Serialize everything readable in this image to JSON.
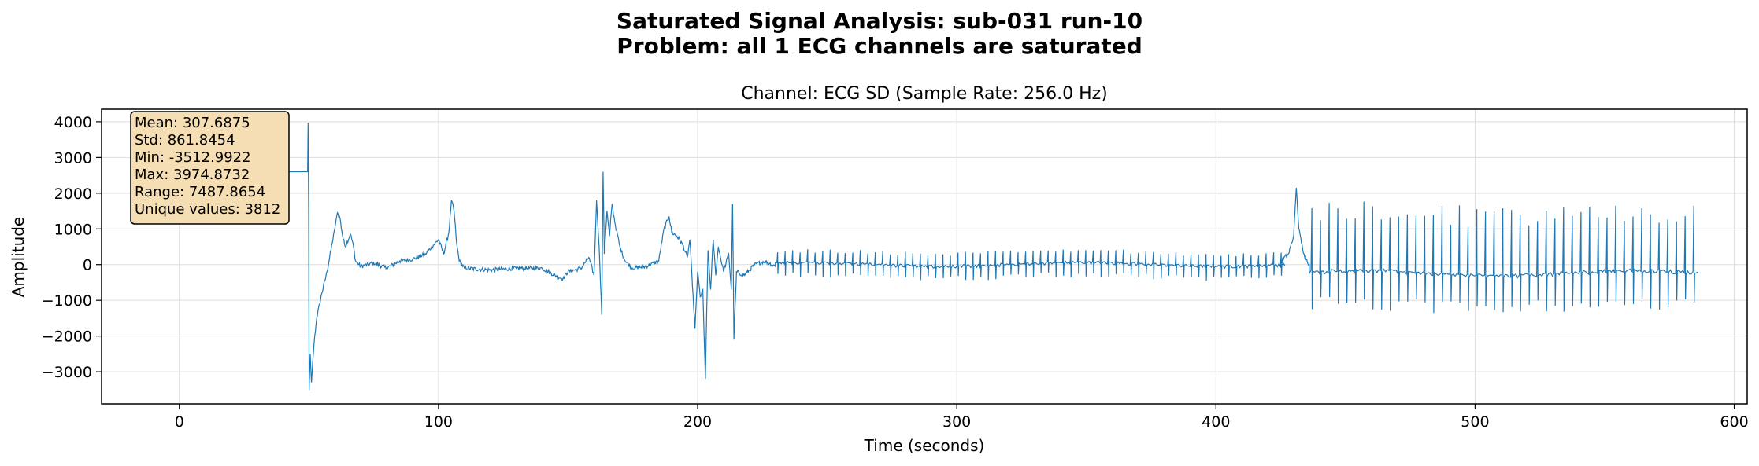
{
  "figure": {
    "suptitle_line_1": "Saturated Signal Analysis: sub-031 run-10",
    "suptitle_line_2": "Problem: all 1 ECG channels are saturated"
  },
  "chart_data": {
    "type": "line",
    "title": "Channel: ECG SD (Sample Rate: 256.0 Hz)",
    "xlabel": "Time (seconds)",
    "ylabel": "Amplitude",
    "xlim": [
      -30,
      605
    ],
    "ylim": [
      -3900,
      4350
    ],
    "x_ticks": [
      0,
      100,
      200,
      300,
      400,
      500,
      600
    ],
    "y_ticks": [
      -3000,
      -2000,
      -1000,
      0,
      1000,
      2000,
      3000,
      4000
    ],
    "grid": true,
    "line_color": "#1f77b4",
    "series": [
      {
        "segments": [
          {
            "type": "flat",
            "x0": -17,
            "x1": 49.5,
            "y": 2600
          },
          {
            "type": "points",
            "pts": [
              [
                49.5,
                2600
              ],
              [
                49.7,
                3974.9
              ],
              [
                49.9,
                1500
              ],
              [
                50.1,
                -3513
              ],
              [
                50.5,
                -2500
              ],
              [
                51,
                -3300
              ],
              [
                52,
                -2200
              ],
              [
                53,
                -1500
              ],
              [
                55,
                -800
              ],
              [
                57,
                -200
              ],
              [
                59,
                600
              ],
              [
                60,
                1000
              ],
              [
                61,
                1450
              ],
              [
                62,
                1300
              ],
              [
                63,
                800
              ],
              [
                64,
                500
              ],
              [
                66,
                850
              ],
              [
                67,
                600
              ],
              [
                68,
                100
              ],
              [
                70,
                -50
              ],
              [
                75,
                50
              ],
              [
                80,
                -100
              ],
              [
                85,
                100
              ],
              [
                90,
                150
              ],
              [
                95,
                300
              ],
              [
                100,
                700
              ],
              [
                102,
                300
              ],
              [
                104,
                900
              ],
              [
                105,
                1800
              ],
              [
                106,
                1500
              ],
              [
                107,
                600
              ],
              [
                108,
                100
              ],
              [
                110,
                -100
              ],
              [
                120,
                -150
              ],
              [
                130,
                -100
              ],
              [
                140,
                -100
              ],
              [
                145,
                -300
              ],
              [
                148,
                -400
              ],
              [
                150,
                -200
              ],
              [
                155,
                -100
              ],
              [
                158,
                200
              ],
              [
                160,
                -300
              ],
              [
                161,
                1800
              ],
              [
                162,
                500
              ],
              [
                163,
                -1400
              ],
              [
                163.5,
                2600
              ],
              [
                164,
                300
              ],
              [
                165,
                1500
              ],
              [
                166,
                800
              ],
              [
                167,
                1700
              ],
              [
                168,
                1200
              ],
              [
                170,
                500
              ],
              [
                172,
                100
              ],
              [
                175,
                -100
              ],
              [
                180,
                -50
              ],
              [
                185,
                100
              ],
              [
                187,
                1000
              ],
              [
                189,
                1350
              ],
              [
                190,
                900
              ],
              [
                192,
                800
              ],
              [
                194,
                600
              ],
              [
                196,
                200
              ],
              [
                197,
                700
              ],
              [
                198,
                -600
              ],
              [
                199,
                -1800
              ],
              [
                200,
                -200
              ],
              [
                201,
                -900
              ],
              [
                202,
                -700
              ],
              [
                203,
                -3200
              ],
              [
                204,
                400
              ],
              [
                205,
                -700
              ],
              [
                206,
                700
              ],
              [
                207,
                -300
              ],
              [
                208,
                500
              ],
              [
                210,
                -200
              ],
              [
                212,
                300
              ],
              [
                213,
                -700
              ],
              [
                213.5,
                1700
              ],
              [
                214,
                -2100
              ],
              [
                215,
                -200
              ],
              [
                218,
                -300
              ],
              [
                222,
                0
              ],
              [
                226,
                100
              ],
              [
                230,
                -50
              ]
            ]
          },
          {
            "type": "beats",
            "x0": 230,
            "x1": 425,
            "period": 2.9,
            "base": 0,
            "jitter": 90,
            "peak": 350,
            "trough": -380
          },
          {
            "type": "points",
            "pts": [
              [
                425,
                100
              ],
              [
                428,
                300
              ],
              [
                430,
                800
              ],
              [
                431,
                2150
              ],
              [
                432,
                1000
              ],
              [
                433,
                600
              ],
              [
                434,
                300
              ],
              [
                436,
                0
              ]
            ]
          },
          {
            "type": "beats",
            "x0": 436,
            "x1": 585,
            "period": 3.35,
            "base": -250,
            "jitter": 120,
            "peak": 1700,
            "trough": -1000
          }
        ]
      }
    ],
    "stats_box": {
      "lines": [
        "Mean: 307.6875",
        "Std: 861.8454",
        "Min: -3512.9922",
        "Max: 3974.8732",
        "Range: 7487.8654",
        "Unique values: 3812"
      ],
      "background": "#f5deb3",
      "border": "#000000"
    }
  }
}
